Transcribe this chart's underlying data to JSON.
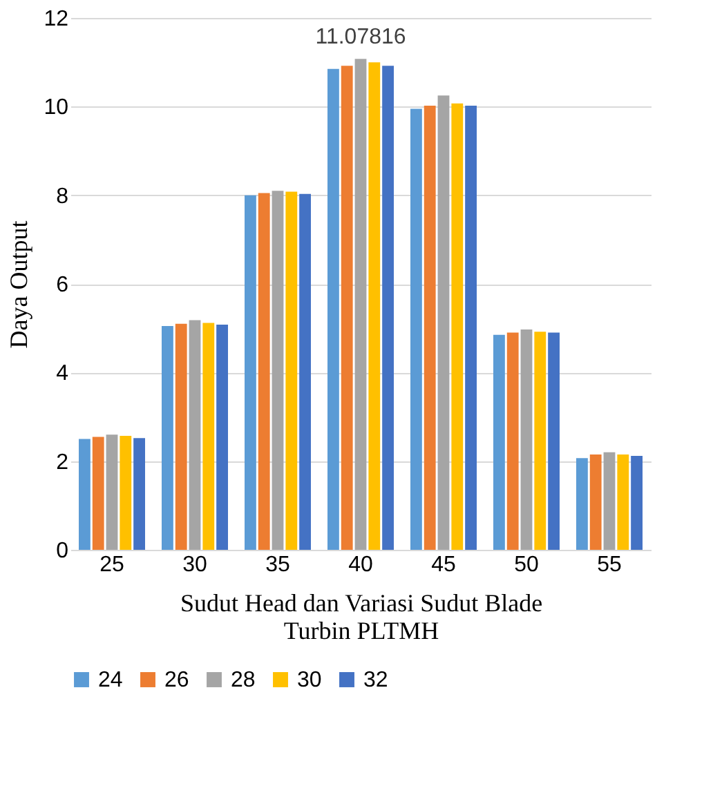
{
  "chart_data": {
    "type": "bar",
    "xlabel": "Sudut Head dan Variasi Sudut Blade Turbin PLTMH",
    "ylabel": "Daya Output",
    "categories": [
      "25",
      "30",
      "35",
      "40",
      "45",
      "50",
      "55"
    ],
    "series": [
      {
        "name": "24",
        "color": "#5b9bd5",
        "values": [
          2.5,
          5.05,
          8.0,
          10.85,
          9.95,
          4.85,
          2.07
        ]
      },
      {
        "name": "26",
        "color": "#ed7d31",
        "values": [
          2.55,
          5.1,
          8.05,
          10.92,
          10.02,
          4.9,
          2.15
        ]
      },
      {
        "name": "28",
        "color": "#a5a5a5",
        "values": [
          2.6,
          5.18,
          8.1,
          11.07816,
          10.25,
          4.97,
          2.2
        ],
        "value_labels": [
          null,
          null,
          null,
          "11.07816",
          null,
          null,
          null
        ]
      },
      {
        "name": "30",
        "color": "#ffc000",
        "values": [
          2.57,
          5.12,
          8.08,
          11.0,
          10.07,
          4.92,
          2.15
        ]
      },
      {
        "name": "32",
        "color": "#4472c4",
        "values": [
          2.52,
          5.08,
          8.03,
          10.92,
          10.02,
          4.9,
          2.12
        ]
      }
    ],
    "ylim": [
      0,
      12
    ],
    "yticks": [
      0,
      2,
      4,
      6,
      8,
      10,
      12
    ],
    "grid": "y",
    "legend": "bottom"
  }
}
